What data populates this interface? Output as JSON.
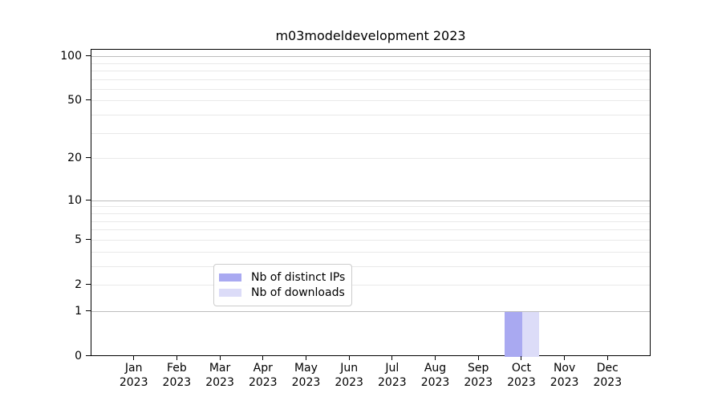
{
  "title": "m03modeldevelopment 2023",
  "chart_data": {
    "type": "bar",
    "title": "m03modeldevelopment 2023",
    "x_categories": [
      "Jan 2023",
      "Feb 2023",
      "Mar 2023",
      "Apr 2023",
      "May 2023",
      "Jun 2023",
      "Jul 2023",
      "Aug 2023",
      "Sep 2023",
      "Oct 2023",
      "Nov 2023",
      "Dec 2023"
    ],
    "series": [
      {
        "name": "Nb of distinct IPs",
        "color": "#a9a9f1",
        "values": [
          0,
          0,
          0,
          0,
          0,
          0,
          0,
          0,
          0,
          1,
          0,
          0
        ]
      },
      {
        "name": "Nb of downloads",
        "color": "#dcdcf8",
        "values": [
          0,
          0,
          0,
          0,
          0,
          0,
          0,
          0,
          0,
          1,
          0,
          0
        ]
      }
    ],
    "xlabel": "",
    "ylabel": "",
    "y_scale": "log1p",
    "ylim": [
      0,
      112
    ],
    "y_ticks": [
      0,
      1,
      2,
      5,
      10,
      20,
      50,
      100
    ],
    "grid_major_values": [
      1,
      10,
      100
    ],
    "grid_minor_values": [
      2,
      3,
      4,
      5,
      6,
      7,
      8,
      9,
      20,
      30,
      40,
      50,
      60,
      70,
      80,
      90
    ],
    "grid": "horizontal-only",
    "legend_position": "lower center",
    "colors": {
      "grid_major": "#bdbdbd",
      "grid_minor": "#e9e9e9",
      "spine": "#000000",
      "background": "#ffffff"
    }
  }
}
